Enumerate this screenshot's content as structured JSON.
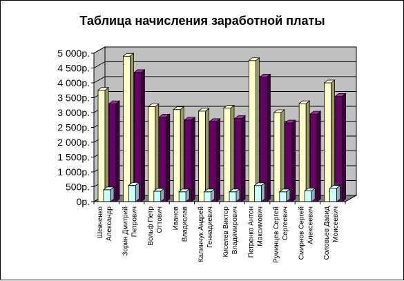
{
  "chart_data": {
    "type": "bar",
    "title": "Таблица начисления заработной платы",
    "xlabel": "",
    "ylabel": "",
    "ylim": [
      0,
      5000
    ],
    "yticks": [
      "0p.",
      "500p.",
      "1 000p.",
      "1 500p.",
      "2 000p.",
      "2 500p.",
      "3 000p.",
      "3 500p.",
      "4 000p.",
      "4 500p.",
      "5 000p."
    ],
    "ytick_values": [
      0,
      500,
      1000,
      1500,
      2000,
      2500,
      3000,
      3500,
      4000,
      4500,
      5000
    ],
    "grid": true,
    "legend": "none",
    "categories": [
      [
        "Шевченко",
        "Александр"
      ],
      [
        "Зорин Дмитрий",
        "Петрович"
      ],
      [
        "Вольф Петр",
        "Оттович"
      ],
      [
        "Иванов",
        "Владислав"
      ],
      [
        "Калинчук Андрей",
        "Геннадиевич"
      ],
      [
        "Киселев Виктор",
        "Владимирович"
      ],
      [
        "Петренко Антон",
        "Максимович"
      ],
      [
        "Руминцев Сергей",
        "Сергеевич"
      ],
      [
        "Смирнов Сергей",
        "Алексеевич"
      ],
      [
        "Соловьев Давид",
        "Моисеевич"
      ]
    ],
    "series": [
      {
        "values": [
          3750,
          4900,
          3200,
          3100,
          3050,
          3150,
          4750,
          3000,
          3300,
          4000
        ]
      },
      {
        "values": [
          400,
          550,
          350,
          330,
          330,
          330,
          540,
          330,
          360,
          450
        ]
      },
      {
        "values": [
          3300,
          4350,
          2850,
          2750,
          2700,
          2800,
          4200,
          2650,
          2950,
          3550
        ]
      }
    ],
    "colors": {
      "series_front": [
        "#ffffcc",
        "#ccffff",
        "#660066"
      ],
      "series_side": [
        "#999966",
        "#8ab3b3",
        "#3d003d"
      ],
      "series_top": [
        "#ffffe8",
        "#e8ffff",
        "#993399"
      ],
      "plot_wall": "#c0c0c0",
      "plot_floor": "#808080",
      "grid": "#000000"
    }
  }
}
